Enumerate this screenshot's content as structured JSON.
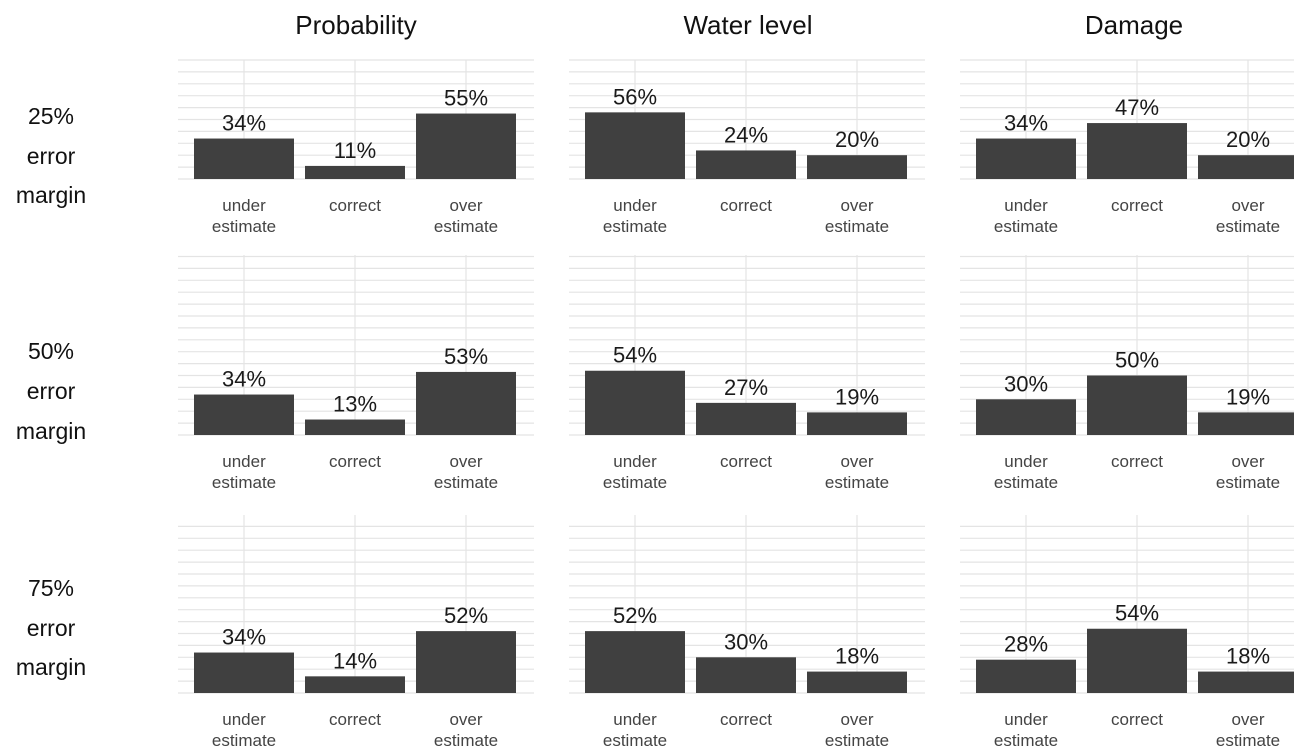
{
  "colors": {
    "bar": "#404040",
    "grid": "#e4e4e4",
    "background": "#ffffff"
  },
  "chart_data": {
    "type": "bar",
    "layout": "faceted grid",
    "columns": [
      "Probability",
      "Water level",
      "Damage"
    ],
    "rows": [
      [
        "25%",
        "error",
        "margin"
      ],
      [
        "50%",
        "error",
        "margin"
      ],
      [
        "75%",
        "error",
        "margin"
      ]
    ],
    "categories": [
      [
        "under",
        "estimate"
      ],
      [
        "correct"
      ],
      [
        "over",
        "estimate"
      ]
    ],
    "value_labels": [
      [
        [
          "34%",
          "11%",
          "55%"
        ],
        [
          "56%",
          "24%",
          "20%"
        ],
        [
          "34%",
          "47%",
          "20%"
        ]
      ],
      [
        [
          "34%",
          "13%",
          "53%"
        ],
        [
          "54%",
          "27%",
          "19%"
        ],
        [
          "30%",
          "50%",
          "19%"
        ]
      ],
      [
        [
          "34%",
          "14%",
          "52%"
        ],
        [
          "52%",
          "30%",
          "18%"
        ],
        [
          "28%",
          "54%",
          "18%"
        ]
      ]
    ],
    "values": [
      [
        [
          34,
          11,
          55
        ],
        [
          56,
          24,
          20
        ],
        [
          34,
          47,
          20
        ]
      ],
      [
        [
          34,
          13,
          53
        ],
        [
          54,
          27,
          19
        ],
        [
          30,
          50,
          19
        ]
      ],
      [
        [
          34,
          14,
          52
        ],
        [
          52,
          30,
          18
        ],
        [
          28,
          54,
          18
        ]
      ]
    ],
    "ylim": [
      0,
      100
    ],
    "grid": true,
    "legend": "none"
  }
}
